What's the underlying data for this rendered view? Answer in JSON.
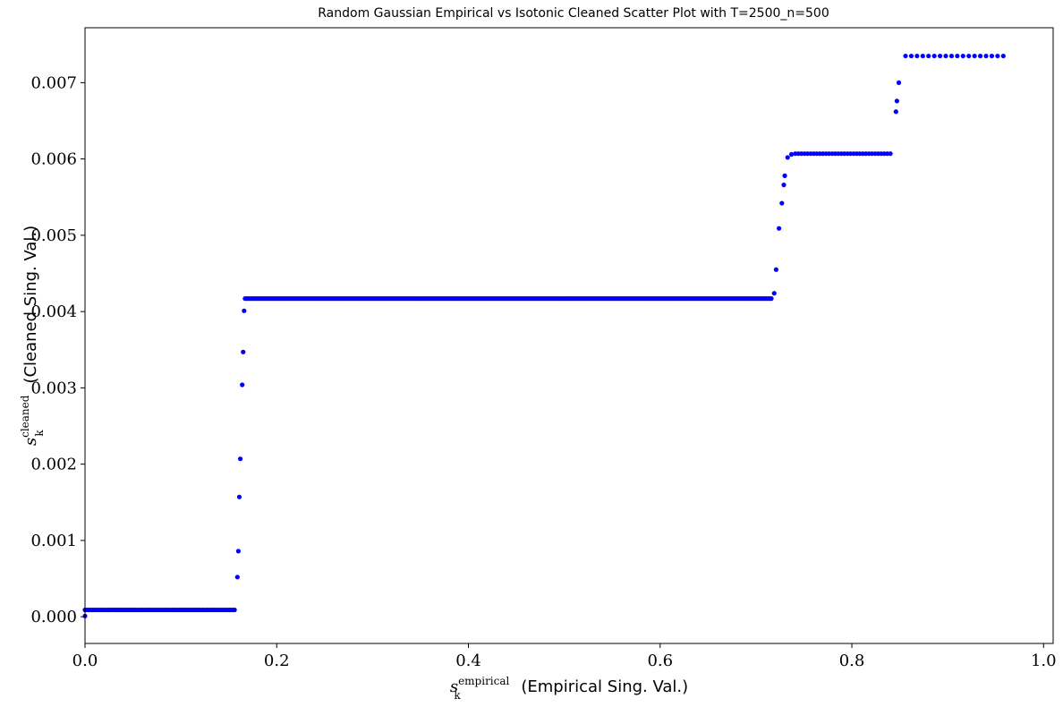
{
  "chart_data": {
    "type": "scatter",
    "title": "Random Gaussian Empirical vs Isotonic Cleaned Scatter Plot with T=2500_n=500",
    "xlabel": {
      "symbol": "s",
      "subscript": "k",
      "superscript": "empirical",
      "text": "(Empirical Sing. Val.)"
    },
    "ylabel": {
      "symbol": "s",
      "subscript": "k",
      "superscript": "cleaned",
      "text": "(Cleaned Sing. Val.)"
    },
    "xlim": [
      0.0,
      1.01
    ],
    "ylim": [
      -0.00035,
      0.00772
    ],
    "xticks": [
      0.0,
      0.2,
      0.4,
      0.6,
      0.8,
      1.0
    ],
    "xtick_labels": [
      "0.0",
      "0.2",
      "0.4",
      "0.6",
      "0.8",
      "1.0"
    ],
    "yticks": [
      0.0,
      0.001,
      0.002,
      0.003,
      0.004,
      0.005,
      0.006,
      0.007
    ],
    "ytick_labels": [
      "0.000",
      "0.001",
      "0.002",
      "0.003",
      "0.004",
      "0.005",
      "0.006",
      "0.007"
    ],
    "grid": false,
    "marker_color": "#0000ff",
    "segments": [
      {
        "x_start": 0.0,
        "x_end": 0.158,
        "y": 9e-05,
        "step": 0.0024
      },
      {
        "x_start": 0.167,
        "x_end": 0.716,
        "y": 0.00417,
        "step": 0.0018
      },
      {
        "x_start": 0.741,
        "x_end": 0.843,
        "y": 0.00607,
        "step": 0.0032
      },
      {
        "x_start": 0.856,
        "x_end": 0.962,
        "y": 0.00735,
        "step": 0.006
      }
    ],
    "points": [
      {
        "x": 0.0,
        "y": 1e-05
      },
      {
        "x": 0.159,
        "y": 0.00052
      },
      {
        "x": 0.16,
        "y": 0.00086
      },
      {
        "x": 0.161,
        "y": 0.00157
      },
      {
        "x": 0.162,
        "y": 0.00207
      },
      {
        "x": 0.164,
        "y": 0.00304
      },
      {
        "x": 0.165,
        "y": 0.00347
      },
      {
        "x": 0.166,
        "y": 0.00401
      },
      {
        "x": 0.719,
        "y": 0.00424
      },
      {
        "x": 0.721,
        "y": 0.00455
      },
      {
        "x": 0.724,
        "y": 0.00509
      },
      {
        "x": 0.727,
        "y": 0.00542
      },
      {
        "x": 0.729,
        "y": 0.00566
      },
      {
        "x": 0.73,
        "y": 0.00578
      },
      {
        "x": 0.733,
        "y": 0.00602
      },
      {
        "x": 0.737,
        "y": 0.00606
      },
      {
        "x": 0.846,
        "y": 0.00662
      },
      {
        "x": 0.847,
        "y": 0.00676
      },
      {
        "x": 0.849,
        "y": 0.007
      }
    ]
  }
}
